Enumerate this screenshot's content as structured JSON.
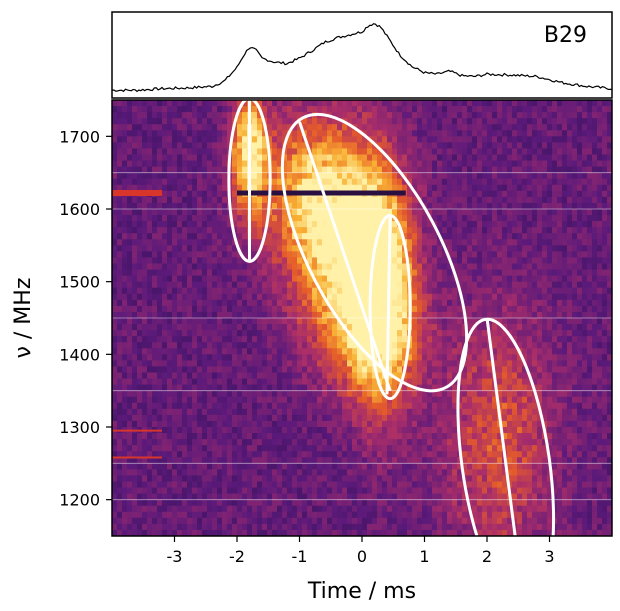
{
  "chart_data": [
    {
      "type": "line",
      "panel": "profile",
      "label": "B29",
      "series": [
        {
          "color": "#000000",
          "x": [
            -4.0,
            -3.6,
            -3.2,
            -2.8,
            -2.4,
            -2.2,
            -2.0,
            -1.9,
            -1.8,
            -1.7,
            -1.6,
            -1.4,
            -1.2,
            -1.0,
            -0.8,
            -0.6,
            -0.4,
            -0.2,
            0.0,
            0.1,
            0.2,
            0.3,
            0.4,
            0.6,
            0.8,
            1.0,
            1.2,
            1.4,
            1.6,
            1.8,
            2.0,
            2.4,
            2.8,
            3.2,
            3.6,
            4.0
          ],
          "y": [
            0.05,
            0.05,
            0.07,
            0.08,
            0.1,
            0.17,
            0.35,
            0.5,
            0.62,
            0.58,
            0.47,
            0.42,
            0.4,
            0.47,
            0.57,
            0.68,
            0.74,
            0.78,
            0.82,
            0.9,
            0.93,
            0.88,
            0.76,
            0.52,
            0.36,
            0.28,
            0.26,
            0.3,
            0.24,
            0.23,
            0.26,
            0.25,
            0.23,
            0.15,
            0.1,
            0.07
          ]
        }
      ],
      "xlim": [
        -4,
        4
      ],
      "ylim": [
        0,
        1
      ]
    },
    {
      "type": "heatmap",
      "panel": "dynamic-spectrum",
      "xlabel": "Time / ms",
      "ylabel": "ν / MHz",
      "xlim": [
        -4,
        4
      ],
      "ylim": [
        1150,
        1750
      ],
      "xticks": [
        -3,
        -2,
        -1,
        0,
        1,
        2,
        3
      ],
      "yticks": [
        1200,
        1300,
        1400,
        1500,
        1600,
        1700
      ],
      "grid_lines_y": [
        1200,
        1250,
        1350,
        1450,
        1600,
        1650
      ],
      "colormap": [
        "#1f0c48",
        "#5c1a7a",
        "#a82d6a",
        "#e45a2b",
        "#f9b234",
        "#fff1a8"
      ],
      "flagged_channels": [
        {
          "freq": 1622,
          "x_range": [
            -4.0,
            -3.2
          ],
          "color": "#d9362b",
          "width": 6
        },
        {
          "freq": 1295,
          "x_range": [
            -4.0,
            -3.2
          ],
          "color": "#d9362b",
          "width": 2
        },
        {
          "freq": 1258,
          "x_range": [
            -4.0,
            -3.2
          ],
          "color": "#d9362b",
          "width": 2
        },
        {
          "freq": 1622,
          "x_range": [
            -2.0,
            0.7
          ],
          "color": "#2a1040",
          "width": 5
        }
      ],
      "emission_blobs": [
        {
          "cx": -1.8,
          "cy": 1680,
          "rx": 0.18,
          "ry": 55,
          "peak": 0.9
        },
        {
          "cx": -0.8,
          "cy": 1630,
          "rx": 0.6,
          "ry": 70,
          "peak": 0.55
        },
        {
          "cx": -0.3,
          "cy": 1550,
          "rx": 0.55,
          "ry": 80,
          "peak": 0.7
        },
        {
          "cx": 0.3,
          "cy": 1490,
          "rx": 0.35,
          "ry": 110,
          "peak": 0.8
        },
        {
          "cx": 0.1,
          "cy": 1430,
          "rx": 0.6,
          "ry": 60,
          "peak": 0.4
        },
        {
          "cx": 2.2,
          "cy": 1280,
          "rx": 0.6,
          "ry": 120,
          "peak": 0.35
        }
      ],
      "ellipses": [
        {
          "cx": -1.8,
          "cy": 1640,
          "rx": 0.33,
          "ry": 112,
          "angle_deg": 0
        },
        {
          "cx": 0.2,
          "cy": 1540,
          "rx": 1.05,
          "ry": 210,
          "angle_deg": -28
        },
        {
          "cx": 0.45,
          "cy": 1465,
          "rx": 0.32,
          "ry": 126,
          "angle_deg": 0
        },
        {
          "cx": 2.3,
          "cy": 1250,
          "rx": 0.7,
          "ry": 200,
          "angle_deg": -8
        }
      ],
      "drift_lines": [
        {
          "x1": -1.8,
          "y1": 1750,
          "x2": -1.8,
          "y2": 1530
        },
        {
          "x1": -1.0,
          "y1": 1720,
          "x2": 0.45,
          "y2": 1350
        },
        {
          "x1": 0.45,
          "y1": 1590,
          "x2": 0.4,
          "y2": 1345
        },
        {
          "x1": 2.0,
          "y1": 1450,
          "x2": 2.45,
          "y2": 1150
        }
      ]
    }
  ]
}
